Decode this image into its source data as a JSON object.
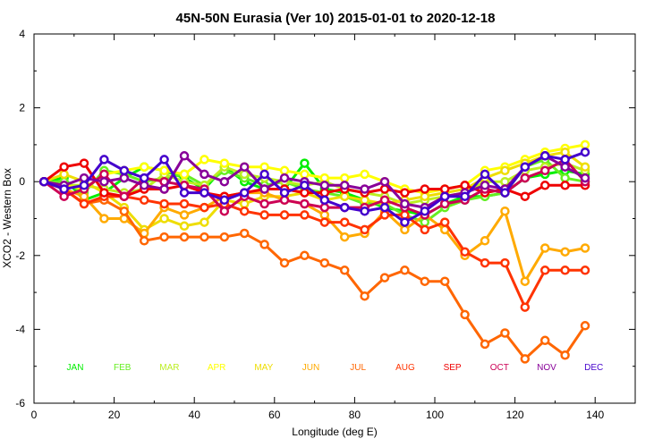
{
  "chart_data": {
    "type": "line",
    "title": "45N-50N Eurasia (Ver 10)   2015-01-01 to 2020-12-18",
    "xlabel": "Longitude (deg E)",
    "ylabel": "XCO2 - Western Box",
    "xlim": [
      0,
      150
    ],
    "ylim": [
      -6,
      4
    ],
    "xticks": [
      0,
      20,
      40,
      60,
      80,
      100,
      120,
      140
    ],
    "yticks": [
      -6,
      -4,
      -2,
      0,
      2,
      4
    ],
    "x": [
      2.5,
      7.5,
      12.5,
      17.5,
      22.5,
      27.5,
      32.5,
      37.5,
      42.5,
      47.5,
      52.5,
      57.5,
      62.5,
      67.5,
      72.5,
      77.5,
      82.5,
      87.5,
      92.5,
      97.5,
      102.5,
      107.5,
      112.5,
      117.5,
      122.5,
      127.5,
      132.5,
      137.5
    ],
    "series": [
      {
        "name": "JAN",
        "color": "#00ee00",
        "values": [
          0,
          0.1,
          -0.5,
          -0.3,
          0.1,
          0.4,
          0.3,
          0.1,
          -0.2,
          0.4,
          0.0,
          -0.2,
          -0.2,
          0.5,
          -0.2,
          -0.3,
          -0.5,
          -0.7,
          -0.8,
          -0.9,
          -0.6,
          -0.4,
          -0.4,
          -0.3,
          0.1,
          0.2,
          0.3,
          0.2
        ]
      },
      {
        "name": "FEB",
        "color": "#66ee22",
        "values": [
          0,
          0.0,
          -0.3,
          0.3,
          0.2,
          0.0,
          0.1,
          0.2,
          -0.1,
          0.3,
          0.1,
          -0.1,
          0.0,
          -0.2,
          -0.3,
          -0.4,
          -0.6,
          -0.6,
          -0.9,
          -1.1,
          -0.7,
          -0.5,
          -0.4,
          -0.3,
          0.4,
          0.6,
          0.1,
          0.0
        ]
      },
      {
        "name": "MAR",
        "color": "#bbee22",
        "values": [
          0,
          -0.1,
          -0.1,
          -0.2,
          -0.3,
          -0.2,
          0.2,
          0.0,
          -0.1,
          0.4,
          0.2,
          0.1,
          0.0,
          -0.1,
          0.0,
          -0.2,
          -0.3,
          -0.4,
          -0.6,
          -0.5,
          -0.4,
          -0.3,
          0.0,
          0.0,
          0.3,
          0.4,
          0.5,
          0.3
        ]
      },
      {
        "name": "APR",
        "color": "#ffff00",
        "values": [
          0,
          -0.1,
          -0.2,
          0.2,
          0.3,
          0.4,
          0.3,
          0.2,
          0.6,
          0.5,
          0.4,
          0.4,
          0.3,
          0.2,
          0.1,
          0.1,
          0.2,
          0.0,
          -0.2,
          -0.3,
          -0.2,
          -0.1,
          0.3,
          0.4,
          0.6,
          0.8,
          0.9,
          1.0
        ]
      },
      {
        "name": "MAY",
        "color": "#eedd00",
        "values": [
          0,
          0.2,
          0.0,
          -0.3,
          -0.7,
          -1.3,
          -1.0,
          -1.2,
          -1.1,
          -0.5,
          -0.6,
          -0.4,
          -0.4,
          -0.3,
          -0.5,
          -0.4,
          -0.5,
          -0.6,
          -0.5,
          -0.4,
          -0.3,
          -0.2,
          0.1,
          0.3,
          0.5,
          0.7,
          0.8,
          0.4
        ]
      },
      {
        "name": "JUN",
        "color": "#ffaa00",
        "values": [
          0,
          -0.2,
          -0.4,
          -1.0,
          -1.0,
          -1.4,
          -0.7,
          -0.9,
          -0.7,
          -0.4,
          -0.3,
          -0.3,
          -0.5,
          -0.6,
          -0.9,
          -1.5,
          -1.4,
          -0.8,
          -1.3,
          -0.9,
          -1.3,
          -2.0,
          -1.6,
          -0.8,
          -2.7,
          -1.8,
          -1.9,
          -1.8
        ]
      },
      {
        "name": "JUL",
        "color": "#ff6600",
        "values": [
          0,
          -0.2,
          -0.6,
          -0.5,
          -0.8,
          -1.6,
          -1.5,
          -1.5,
          -1.5,
          -1.5,
          -1.4,
          -1.7,
          -2.2,
          -2.0,
          -2.2,
          -2.4,
          -3.1,
          -2.6,
          -2.4,
          -2.7,
          -2.7,
          -3.6,
          -4.4,
          -4.1,
          -4.8,
          -4.3,
          -4.7,
          -3.9
        ]
      },
      {
        "name": "AUG",
        "color": "#ff3300",
        "values": [
          0,
          -0.2,
          -0.6,
          -0.4,
          -0.4,
          -0.5,
          -0.6,
          -0.6,
          -0.7,
          -0.6,
          -0.8,
          -0.9,
          -0.9,
          -0.9,
          -1.1,
          -1.1,
          -1.3,
          -0.9,
          -0.9,
          -1.3,
          -1.1,
          -1.9,
          -2.2,
          -2.2,
          -3.4,
          -2.4,
          -2.4,
          -2.4
        ]
      },
      {
        "name": "SEP",
        "color": "#ee0000",
        "values": [
          0,
          0.4,
          0.5,
          -0.3,
          -0.4,
          -0.2,
          -0.2,
          -0.1,
          -0.3,
          -0.4,
          -0.3,
          -0.2,
          -0.2,
          -0.3,
          -0.3,
          -0.2,
          -0.3,
          -0.2,
          -0.3,
          -0.2,
          -0.2,
          -0.1,
          -0.3,
          -0.2,
          -0.4,
          -0.1,
          -0.1,
          -0.1
        ]
      },
      {
        "name": "OCT",
        "color": "#cc0055",
        "values": [
          0,
          -0.4,
          -0.2,
          0.2,
          -0.4,
          0.1,
          0.0,
          -0.1,
          -0.2,
          -0.8,
          -0.4,
          -0.6,
          -0.5,
          -0.6,
          -0.7,
          -0.7,
          -0.7,
          -0.5,
          -0.7,
          -0.9,
          -0.6,
          -0.5,
          -0.2,
          -0.3,
          0.1,
          0.3,
          0.6,
          0.0
        ]
      },
      {
        "name": "NOV",
        "color": "#880099",
        "values": [
          0,
          -0.1,
          0.1,
          0.0,
          0.1,
          -0.1,
          -0.2,
          0.7,
          0.2,
          0.0,
          0.4,
          -0.2,
          0.1,
          0.0,
          -0.1,
          -0.1,
          -0.2,
          0.0,
          -0.6,
          -0.7,
          -0.4,
          -0.3,
          -0.1,
          -0.2,
          0.4,
          0.7,
          0.4,
          0.1
        ]
      },
      {
        "name": "DEC",
        "color": "#4400cc",
        "values": [
          0,
          -0.2,
          -0.1,
          0.6,
          0.3,
          0.1,
          0.6,
          -0.3,
          -0.3,
          -0.5,
          -0.3,
          0.2,
          -0.3,
          -0.1,
          -0.5,
          -0.7,
          -0.8,
          -0.7,
          -1.1,
          -0.8,
          -0.4,
          -0.4,
          0.2,
          -0.3,
          0.4,
          0.7,
          0.6,
          0.8
        ]
      }
    ],
    "legend_placement": "inside-bottom",
    "grid": false
  }
}
